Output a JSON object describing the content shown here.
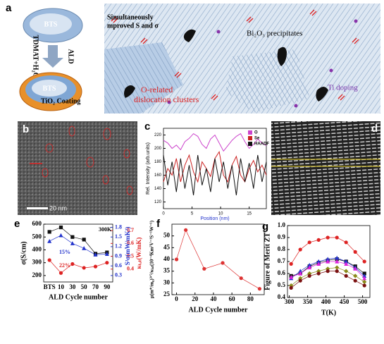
{
  "figure": {
    "labels": [
      "a",
      "b",
      "c",
      "d",
      "e",
      "f",
      "g"
    ],
    "a": {
      "core": "BTS",
      "reagent": "TDMAT+H₂O",
      "process": "ALD",
      "core_coated": "BTS",
      "coating": "TiO₂ Coating",
      "improved": "Simultaneously",
      "improved2": "mproved S and σ",
      "precipitates": "Bi₂O₃ precipitates",
      "clusters": "O-related",
      "clusters2": "dislocation clusters",
      "doping": "Ti doping"
    },
    "scale_bar": "20 nm"
  },
  "chart_data": [
    {
      "type": "line",
      "xlabel": "Position (nm)",
      "ylabel": "Rel. Intensity (arb.units)",
      "x": [
        0,
        0.75,
        1.5,
        2.25,
        3,
        3.75,
        4.5,
        5.25,
        6,
        6.75,
        7.5,
        8.25,
        9,
        9.75,
        10.5,
        11.25,
        12,
        12.75,
        13.5,
        14.25,
        15,
        15.75,
        16.5,
        17.25,
        18
      ],
      "series": [
        {
          "name": "O",
          "color": "#cc44cc",
          "values": [
            212,
            208,
            200,
            205,
            198,
            210,
            215,
            222,
            218,
            206,
            200,
            214,
            220,
            208,
            196,
            204,
            212,
            218,
            222,
            210,
            200,
            206,
            214,
            208,
            204
          ]
        },
        {
          "name": "Se",
          "color": "#cc2222",
          "values": [
            150,
            170,
            160,
            185,
            150,
            175,
            190,
            165,
            150,
            180,
            170,
            158,
            185,
            195,
            160,
            150,
            175,
            188,
            160,
            150,
            170,
            182,
            165,
            175,
            160
          ]
        },
        {
          "name": "HAADF",
          "color": "#111111",
          "values": [
            190,
            145,
            180,
            135,
            185,
            140,
            175,
            130,
            190,
            145,
            170,
            135,
            185,
            150,
            180,
            140,
            175,
            130,
            185,
            150,
            178,
            140,
            190,
            150,
            180
          ]
        }
      ],
      "xlim": [
        0,
        18
      ],
      "xticks": [
        0,
        5,
        10,
        15
      ],
      "ylim": [
        110,
        230
      ],
      "yticks": [
        120,
        140,
        160,
        180,
        200,
        220
      ],
      "legend": "upper right"
    },
    {
      "type": "line",
      "xlabel": "ALD Cycle number",
      "ylabel": "σ(S/cm)",
      "y2label": "S²σ(mW/mK²)",
      "y3label": "κₜₒₜ(W/mK)",
      "annotations": [
        "300K",
        "15%",
        "22%"
      ],
      "categories": [
        "BTS",
        "10",
        "30",
        "50",
        "70",
        "90"
      ],
      "series": [
        {
          "color": "#111111",
          "marker": "square",
          "values": [
            540,
            575,
            500,
            480,
            370,
            380
          ]
        },
        {
          "color": "#2233cc",
          "marker": "triangle",
          "axis": "y2",
          "values": [
            1.37,
            1.55,
            1.3,
            1.15,
            0.95,
            0.97
          ]
        },
        {
          "color": "#dd2222",
          "marker": "circle",
          "axis": "y3",
          "values": [
            0.47,
            0.37,
            0.44,
            0.41,
            0.42,
            0.45
          ]
        }
      ],
      "ylim": [
        150,
        600
      ],
      "yticks": [
        200,
        300,
        400,
        500,
        600
      ],
      "y2lim": [
        0.1,
        1.9
      ],
      "y2ticks": [
        0.3,
        0.6,
        0.9,
        1.2,
        1.5,
        1.8
      ],
      "y3lim": [
        0.3,
        0.75
      ],
      "y3ticks": [
        0.4,
        0.5,
        0.6,
        0.7
      ]
    },
    {
      "type": "line",
      "xlabel": "ALD Cycle number",
      "ylabel": "μ(m*/m₀)³ᐟ²/κₗₐₜ(10⁻⁴Km²V⁻¹S⁻¹W⁻¹)",
      "x": [
        0,
        10,
        30,
        50,
        70,
        90
      ],
      "series": [
        {
          "color": "#dd3333",
          "marker": "circle",
          "values": [
            40,
            52.5,
            36,
            38.5,
            32,
            27.5
          ]
        }
      ],
      "xlim": [
        -5,
        95
      ],
      "xticks": [
        0,
        20,
        40,
        60,
        80
      ],
      "ylim": [
        25,
        55
      ],
      "yticks": [
        25,
        30,
        35,
        40,
        45,
        50
      ]
    },
    {
      "type": "line",
      "xlabel": "T(K)",
      "ylabel": "Figure of Merit ZT",
      "x": [
        305,
        330,
        355,
        380,
        405,
        430,
        455,
        480,
        505
      ],
      "series": [
        {
          "color": "#dd2222",
          "marker": "circle",
          "values": [
            0.68,
            0.8,
            0.86,
            0.88,
            0.9,
            0.9,
            0.86,
            0.78,
            0.7
          ]
        },
        {
          "color": "#111111",
          "marker": "square",
          "values": [
            0.58,
            0.6,
            0.66,
            0.69,
            0.71,
            0.72,
            0.7,
            0.66,
            0.6
          ]
        },
        {
          "color": "#2233cc",
          "marker": "triangle",
          "values": [
            0.56,
            0.62,
            0.67,
            0.7,
            0.72,
            0.73,
            0.7,
            0.65,
            0.58
          ]
        },
        {
          "color": "#dd22dd",
          "marker": "triangle",
          "values": [
            0.57,
            0.6,
            0.65,
            0.68,
            0.7,
            0.7,
            0.68,
            0.64,
            0.56
          ]
        },
        {
          "color": "#8a8a1a",
          "marker": "diamond",
          "values": [
            0.5,
            0.56,
            0.6,
            0.62,
            0.64,
            0.65,
            0.62,
            0.58,
            0.53
          ]
        },
        {
          "color": "#7a1010",
          "marker": "circle",
          "values": [
            0.48,
            0.54,
            0.58,
            0.6,
            0.62,
            0.62,
            0.58,
            0.54,
            0.5
          ]
        }
      ],
      "xlim": [
        295,
        520
      ],
      "xticks": [
        300,
        350,
        400,
        450,
        500
      ],
      "ylim": [
        0.4,
        1.0
      ],
      "yticks": [
        0.4,
        0.5,
        0.6,
        0.7,
        0.8,
        0.9,
        {
          "value": 1,
          "label": "1.0"
        }
      ]
    }
  ]
}
